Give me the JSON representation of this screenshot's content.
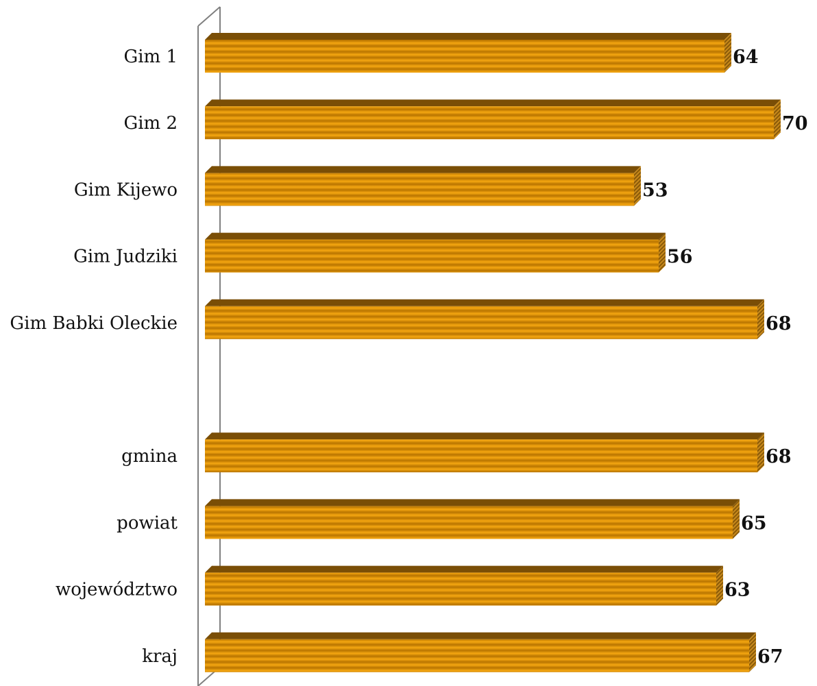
{
  "chart_data": {
    "type": "bar",
    "orientation": "horizontal",
    "style": "3d",
    "categories": [
      "Gim 1",
      "Gim 2",
      "Gim Kijewo",
      "Gim Judziki",
      "Gim Babki Oleckie",
      "",
      "gmina",
      "powiat",
      "województwo",
      "kraj"
    ],
    "values": [
      64,
      70,
      53,
      56,
      68,
      null,
      68,
      65,
      63,
      67
    ],
    "data_labels": [
      "64",
      "70",
      "53",
      "56",
      "68",
      "",
      "68",
      "65",
      "63",
      "67"
    ],
    "xlim": [
      0,
      70
    ],
    "grid": false,
    "legend": "none",
    "colors": {
      "bar_light": "#f2a20e",
      "bar_mid": "#d88a00",
      "bar_dark": "#9b6200",
      "bar_top": "#7a4e06",
      "axis_wall": "#7f7f7f"
    }
  }
}
